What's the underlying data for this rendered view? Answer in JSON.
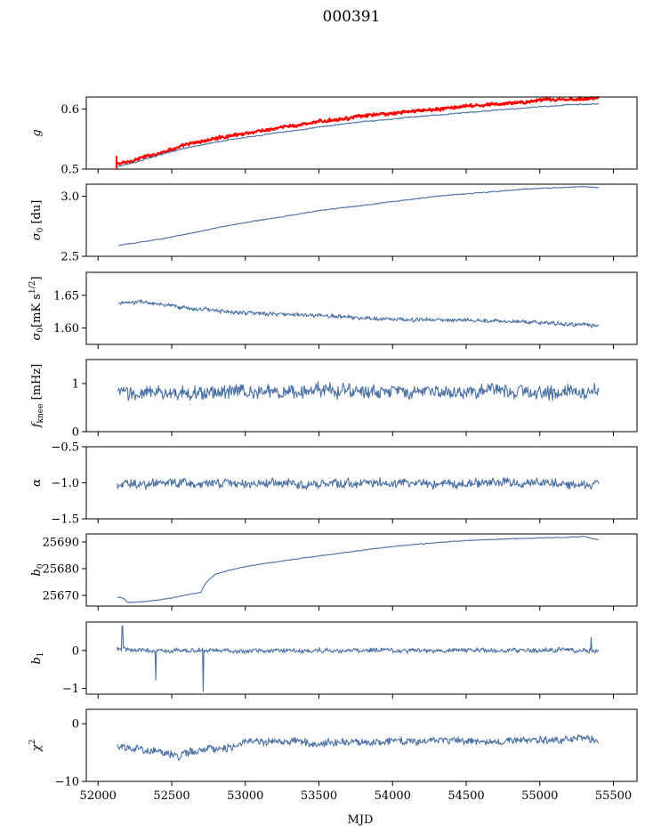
{
  "figure": {
    "title": "000391",
    "xlabel": "MJD"
  },
  "x_axis": {
    "range": [
      51920,
      55660
    ],
    "ticks": [
      52000,
      52500,
      53000,
      53500,
      54000,
      54500,
      55000,
      55500
    ],
    "tick_labels": [
      "52000",
      "52500",
      "53000",
      "53500",
      "54000",
      "54500",
      "55000",
      "55500"
    ]
  },
  "colors": {
    "series": "#4c72a4",
    "reference": "#ff0000",
    "axes": "#000000"
  },
  "chart_data": [
    {
      "type": "line",
      "id": "g",
      "ylabel_main": "g",
      "ylabel_sub": "",
      "ylim": [
        0.5,
        0.62
      ],
      "yticks": [
        0.5,
        0.6
      ],
      "ytick_labels": [
        "0.5",
        "0.6"
      ],
      "x": [
        52130,
        52200,
        52300,
        52400,
        52500,
        52600,
        52700,
        52800,
        52900,
        53000,
        53100,
        53200,
        53300,
        53400,
        53500,
        53600,
        53700,
        53800,
        53900,
        54000,
        54100,
        54200,
        54300,
        54400,
        54500,
        54600,
        54700,
        54800,
        54900,
        55000,
        55100,
        55200,
        55300,
        55400
      ],
      "series": [
        {
          "color": "red",
          "values": [
            0.508,
            0.512,
            0.519,
            0.526,
            0.533,
            0.54,
            0.546,
            0.551,
            0.555,
            0.56,
            0.563,
            0.567,
            0.571,
            0.575,
            0.579,
            0.582,
            0.585,
            0.588,
            0.591,
            0.593,
            0.596,
            0.598,
            0.6,
            0.602,
            0.604,
            0.606,
            0.608,
            0.61,
            0.612,
            0.614,
            0.615,
            0.616,
            0.617,
            0.618
          ],
          "noise": 0.003
        },
        {
          "color": "blue",
          "values": [
            0.504,
            0.508,
            0.515,
            0.522,
            0.529,
            0.535,
            0.54,
            0.545,
            0.549,
            0.553,
            0.556,
            0.56,
            0.563,
            0.566,
            0.57,
            0.573,
            0.576,
            0.579,
            0.581,
            0.583,
            0.586,
            0.588,
            0.59,
            0.592,
            0.594,
            0.596,
            0.598,
            0.6,
            0.602,
            0.604,
            0.605,
            0.607,
            0.608,
            0.609
          ],
          "noise": 0.001
        }
      ]
    },
    {
      "type": "line",
      "id": "sigma0_du",
      "ylabel_main": "σ",
      "ylabel_sub": "0",
      "ylabel_rest": " [du]",
      "ylim": [
        2.5,
        3.1
      ],
      "yticks": [
        2.5,
        3.0
      ],
      "ytick_labels": [
        "2.5",
        "3.0"
      ],
      "x": [
        52140,
        52300,
        52500,
        52700,
        52900,
        53100,
        53300,
        53500,
        53700,
        53900,
        54100,
        54300,
        54500,
        54700,
        54900,
        55100,
        55300,
        55400
      ],
      "series": [
        {
          "color": "blue",
          "values": [
            2.59,
            2.62,
            2.66,
            2.71,
            2.76,
            2.8,
            2.84,
            2.88,
            2.91,
            2.94,
            2.97,
            3.0,
            3.02,
            3.04,
            3.06,
            3.07,
            3.08,
            3.07
          ],
          "noise": 0.004
        }
      ]
    },
    {
      "type": "line",
      "id": "sigma0_mks",
      "ylabel_main": "σ",
      "ylabel_sub": "0",
      "ylabel_rest": "[mK s",
      "ylabel_sup": "1/2",
      "ylabel_end": "]",
      "ylim": [
        1.575,
        1.685
      ],
      "yticks": [
        1.6,
        1.65
      ],
      "ytick_labels": [
        "1.60",
        "1.65"
      ],
      "x": [
        52140,
        52300,
        52500,
        52700,
        52900,
        53100,
        53300,
        53500,
        53700,
        53900,
        54100,
        54300,
        54500,
        54700,
        54900,
        55100,
        55300,
        55400
      ],
      "series": [
        {
          "color": "blue",
          "values": [
            1.638,
            1.64,
            1.633,
            1.629,
            1.625,
            1.622,
            1.621,
            1.619,
            1.617,
            1.614,
            1.613,
            1.612,
            1.612,
            1.611,
            1.609,
            1.607,
            1.605,
            1.603
          ],
          "noise": 0.0035
        }
      ]
    },
    {
      "type": "line",
      "id": "fknee",
      "ylabel_main": "f",
      "ylabel_sub": "knee",
      "ylabel_rest": " [mHz]",
      "ylim": [
        0,
        1.5
      ],
      "yticks": [
        0,
        1
      ],
      "ytick_labels": [
        "0",
        "1"
      ],
      "x": [
        52130,
        52300,
        52500,
        52700,
        52900,
        53100,
        53300,
        53500,
        53700,
        53900,
        54100,
        54300,
        54500,
        54700,
        54900,
        55100,
        55300,
        55400
      ],
      "series": [
        {
          "color": "blue",
          "values": [
            0.8,
            0.8,
            0.81,
            0.82,
            0.82,
            0.83,
            0.83,
            0.84,
            0.84,
            0.83,
            0.83,
            0.82,
            0.82,
            0.83,
            0.83,
            0.82,
            0.82,
            0.82
          ],
          "noise": 0.16
        }
      ]
    },
    {
      "type": "line",
      "id": "alpha",
      "ylabel_main": "α",
      "ylabel_sub": "",
      "ylim": [
        -1.5,
        -0.5
      ],
      "yticks": [
        -1.5,
        -1.0,
        -0.5
      ],
      "ytick_labels": [
        "−1.5",
        "−1.0",
        "−0.5"
      ],
      "x": [
        52130,
        52300,
        52500,
        52700,
        52900,
        53100,
        53300,
        53500,
        53700,
        53900,
        54100,
        54300,
        54500,
        54700,
        54900,
        55100,
        55300,
        55400
      ],
      "series": [
        {
          "color": "blue",
          "values": [
            -1.02,
            -1.01,
            -1.0,
            -1.01,
            -1.0,
            -1.01,
            -1.0,
            -1.02,
            -1.0,
            -1.01,
            -1.0,
            -1.01,
            -1.0,
            -1.01,
            -1.0,
            -1.0,
            -1.01,
            -1.01
          ],
          "noise": 0.07
        }
      ]
    },
    {
      "type": "line",
      "id": "b0",
      "ylabel_main": "b",
      "ylabel_sub": "0",
      "ylim": [
        25666,
        25693
      ],
      "yticks": [
        25670,
        25680,
        25690
      ],
      "ytick_labels": [
        "25670",
        "25680",
        "25690"
      ],
      "x": [
        52130,
        52170,
        52200,
        52300,
        52400,
        52500,
        52600,
        52700,
        52720,
        52760,
        52800,
        52900,
        53000,
        53200,
        53400,
        53600,
        53800,
        54000,
        54200,
        54400,
        54600,
        54800,
        55000,
        55200,
        55300,
        55400
      ],
      "series": [
        {
          "color": "blue",
          "values": [
            25669.3,
            25669.0,
            25667.3,
            25667.6,
            25668.2,
            25669.0,
            25670.2,
            25671.2,
            25673.8,
            25676.2,
            25678.0,
            25679.5,
            25680.8,
            25682.5,
            25684.0,
            25685.5,
            25687.0,
            25688.3,
            25689.3,
            25690.2,
            25690.8,
            25691.2,
            25691.5,
            25691.8,
            25692.0,
            25690.8
          ],
          "noise": 0.15
        }
      ]
    },
    {
      "type": "line",
      "id": "b1",
      "ylabel_main": "b",
      "ylabel_sub": "1",
      "ylim": [
        -1.15,
        0.75
      ],
      "yticks": [
        -1,
        0
      ],
      "ytick_labels": [
        "−1",
        "0"
      ],
      "x": [
        52130,
        52300,
        52500,
        52700,
        52900,
        53100,
        53300,
        53500,
        53700,
        53900,
        54100,
        54300,
        54500,
        54700,
        54900,
        55100,
        55300,
        55400
      ],
      "series": [
        {
          "color": "blue",
          "values": [
            0.05,
            0.0,
            0.0,
            0.0,
            0.0,
            0.0,
            0.0,
            0.0,
            0.0,
            0.0,
            0.0,
            0.0,
            0.0,
            0.0,
            0.0,
            0.0,
            0.0,
            0.0
          ],
          "noise": 0.07
        }
      ],
      "spikes": [
        {
          "x": 52165,
          "y": 0.65
        },
        {
          "x": 52390,
          "y": -0.78
        },
        {
          "x": 52715,
          "y": -1.08
        },
        {
          "x": 55350,
          "y": 0.35
        }
      ]
    },
    {
      "type": "line",
      "id": "chi2",
      "ylabel_main": "χ",
      "ylabel_sup": "2",
      "ylim": [
        -10,
        2.5
      ],
      "yticks": [
        -10,
        0
      ],
      "ytick_labels": [
        "−10",
        "0"
      ],
      "x": [
        52130,
        52300,
        52450,
        52550,
        52700,
        52900,
        53000,
        53150,
        53300,
        53500,
        53700,
        53900,
        54100,
        54300,
        54500,
        54700,
        54900,
        55100,
        55300,
        55400
      ],
      "series": [
        {
          "color": "blue",
          "values": [
            -4.0,
            -4.5,
            -5.0,
            -5.5,
            -4.5,
            -4.2,
            -3.0,
            -3.2,
            -2.8,
            -3.5,
            -3.0,
            -3.3,
            -3.0,
            -2.8,
            -3.2,
            -3.0,
            -2.7,
            -3.0,
            -2.5,
            -3.2
          ],
          "noise": 0.75
        }
      ]
    }
  ]
}
